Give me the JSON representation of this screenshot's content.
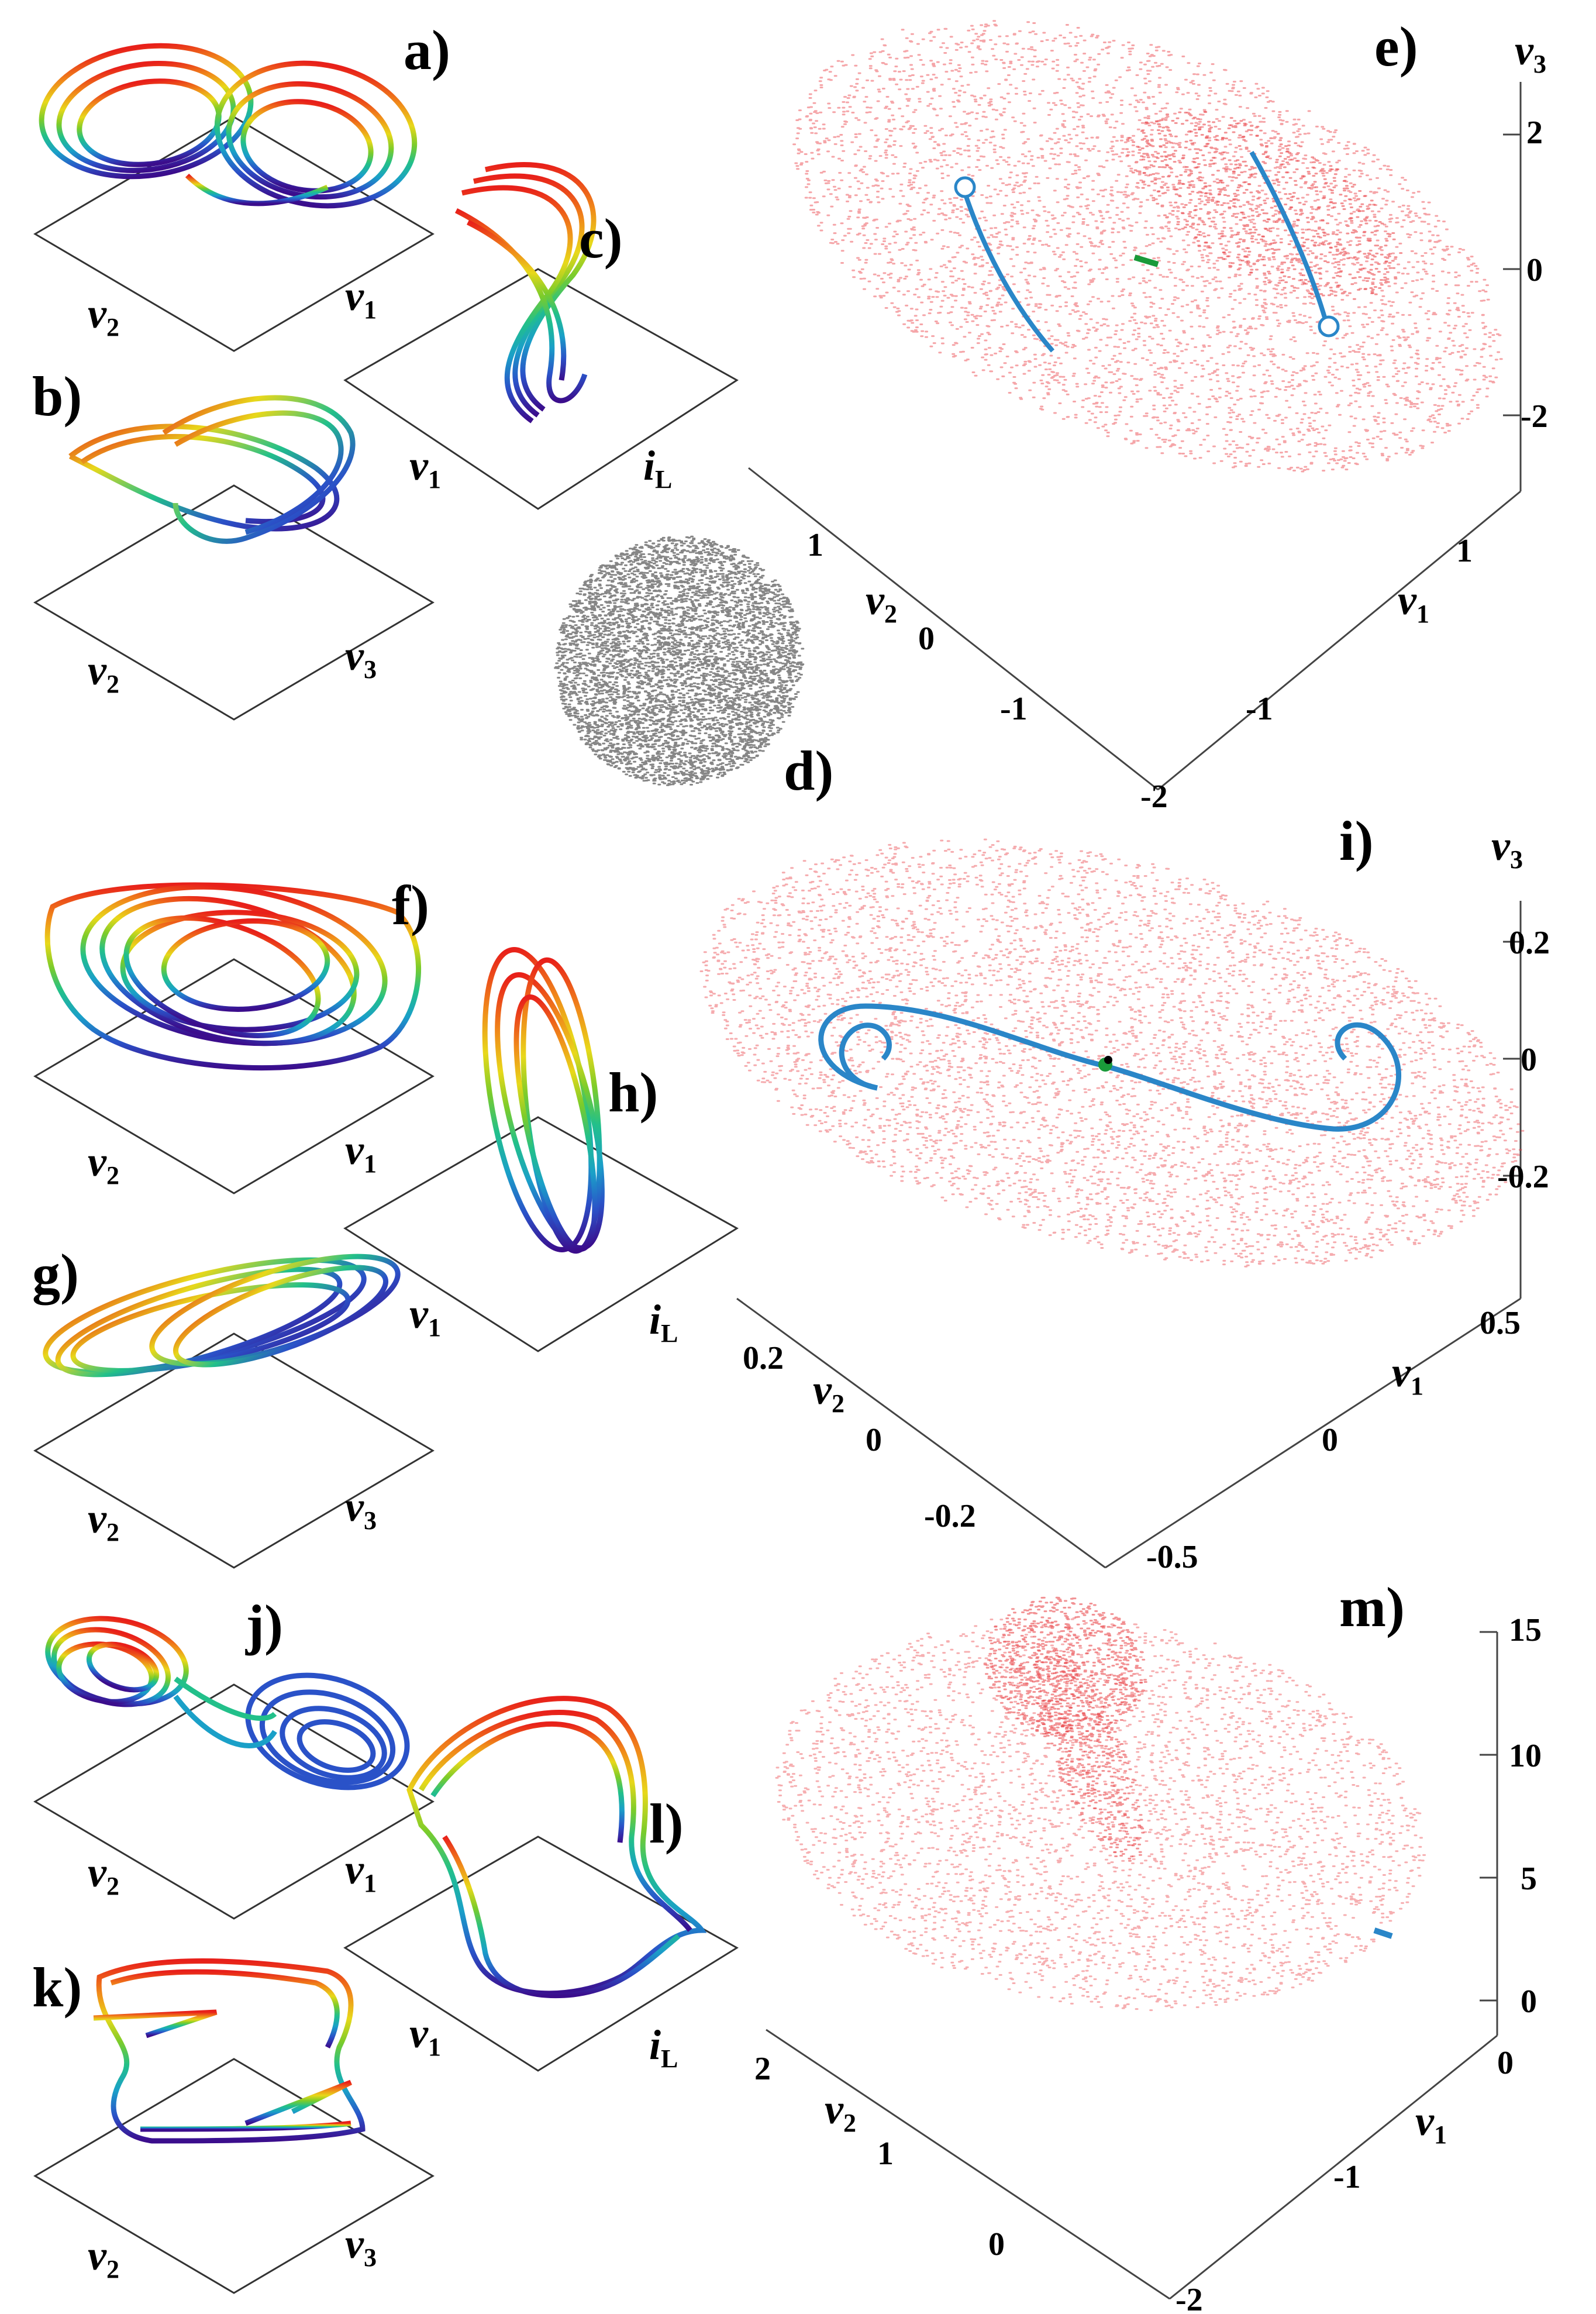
{
  "panels": {
    "a": {
      "label": "a)",
      "axes": [
        "v",
        "2",
        "v",
        "1"
      ]
    },
    "b": {
      "label": "b)",
      "axes": [
        "v",
        "2",
        "v",
        "3"
      ]
    },
    "c": {
      "label": "c)",
      "axes": [
        "v",
        "1",
        "i",
        "L"
      ]
    },
    "d": {
      "label": "d)"
    },
    "e": {
      "label": "e)",
      "axis_v3": [
        "v",
        "3"
      ],
      "axis_v1": [
        "v",
        "1"
      ],
      "axis_v2": [
        "v",
        "2"
      ],
      "z_ticks": [
        "2",
        "0",
        "-2"
      ],
      "x_ticks": [
        "1",
        "-1",
        "-2"
      ],
      "y_ticks": [
        "1",
        "0",
        "-1"
      ]
    },
    "f": {
      "label": "f)",
      "axes": [
        "v",
        "2",
        "v",
        "1"
      ]
    },
    "g": {
      "label": "g)",
      "axes": [
        "v",
        "2",
        "v",
        "3"
      ]
    },
    "h": {
      "label": "h)",
      "axes": [
        "v",
        "1",
        "i",
        "L"
      ]
    },
    "i": {
      "label": "i)",
      "axis_v3": [
        "v",
        "3"
      ],
      "axis_v1": [
        "v",
        "1"
      ],
      "axis_v2": [
        "v",
        "2"
      ],
      "z_ticks": [
        "0.2",
        "0",
        "-0.2"
      ],
      "x_ticks": [
        "0.5",
        "0",
        "-0.5"
      ],
      "y_ticks": [
        "0.2",
        "0",
        "-0.2"
      ]
    },
    "j": {
      "label": "j)",
      "axes": [
        "v",
        "2",
        "v",
        "1"
      ]
    },
    "k": {
      "label": "k)",
      "axes": [
        "v",
        "2",
        "v",
        "3"
      ]
    },
    "l": {
      "label": "l)",
      "axes": [
        "v",
        "1",
        "i",
        "L"
      ]
    },
    "m": {
      "label": "m)",
      "axis_v1": [
        "v",
        "1"
      ],
      "axis_v2": [
        "v",
        "2"
      ],
      "z_ticks": [
        "15",
        "10",
        "5",
        "0"
      ],
      "x_ticks": [
        "0",
        "-1",
        "-2"
      ],
      "y_ticks": [
        "2",
        "1",
        "0"
      ]
    }
  },
  "colors": {
    "chaotic_cloud": "#e8383d",
    "unstable_orbit": "#2a86c8",
    "equilibrium": "#1a9a3a",
    "colormap": [
      "#3b0d8c",
      "#2a52c8",
      "#1aa0c8",
      "#22c08a",
      "#7ccc2a",
      "#e8d81a",
      "#f08a1a",
      "#e8201a"
    ]
  }
}
